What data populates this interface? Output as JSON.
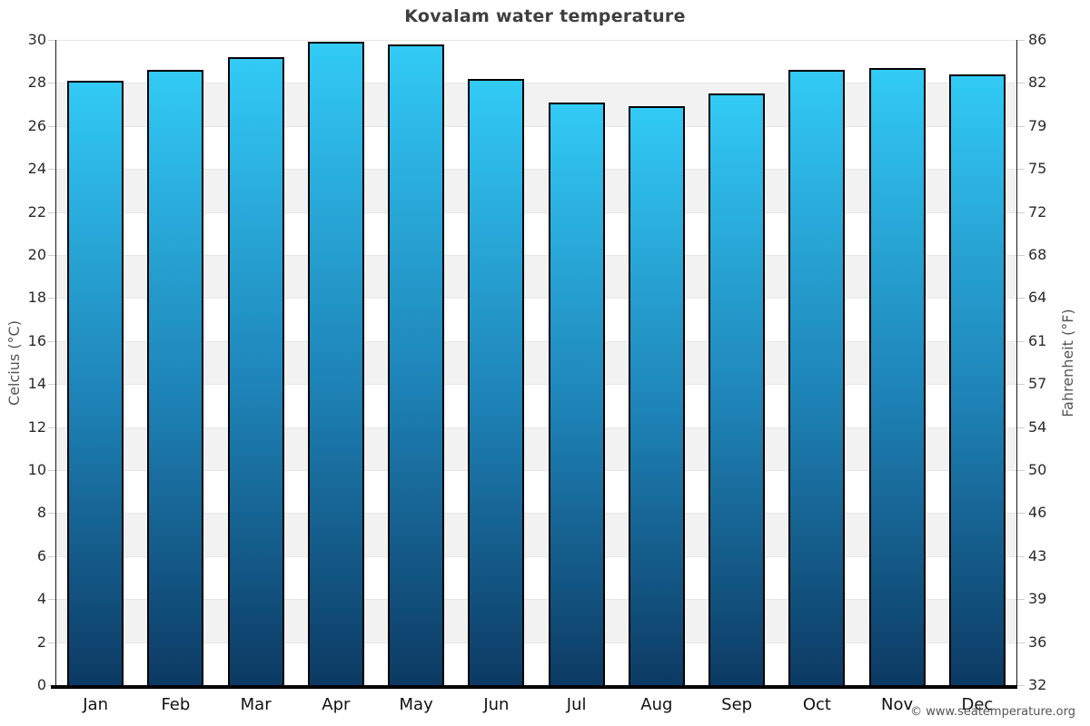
{
  "chart_data": {
    "type": "bar",
    "title": "Kovalam water temperature",
    "categories": [
      "Jan",
      "Feb",
      "Mar",
      "Apr",
      "May",
      "Jun",
      "Jul",
      "Aug",
      "Sep",
      "Oct",
      "Nov",
      "Dec"
    ],
    "values": [
      28.1,
      28.6,
      29.2,
      29.9,
      29.8,
      28.2,
      27.1,
      26.9,
      27.5,
      28.6,
      28.7,
      28.4
    ],
    "unit": "°C",
    "ylabel_left": "Celcius (°C)",
    "ylabel_right": "Fahrenheit (°F)",
    "ylim": [
      0,
      30
    ],
    "ytick_step": 2,
    "left_tick_labels": [
      "0",
      "2",
      "4",
      "6",
      "8",
      "10",
      "12",
      "14",
      "16",
      "18",
      "20",
      "22",
      "24",
      "26",
      "28",
      "30"
    ],
    "right_tick_labels": [
      "32",
      "36",
      "39",
      "43",
      "46",
      "50",
      "54",
      "57",
      "61",
      "64",
      "68",
      "72",
      "75",
      "79",
      "82",
      "86"
    ],
    "legend": "none",
    "grid": "alternating horizontal bands every 2 degrees",
    "colors": {
      "bar_gradient_top": "#32caf6",
      "bar_gradient_mid": "#1e84b8",
      "bar_gradient_bottom": "#0c3a63",
      "bar_border": "#000000",
      "band_gray": "#f2f2f2",
      "gridline": "#e7e7e7",
      "axis": "#1a1a1a",
      "title_text": "#3f3f3f",
      "axis_title_text": "#555555"
    }
  },
  "footer": {
    "copyright": "© www.seatemperature.org"
  }
}
